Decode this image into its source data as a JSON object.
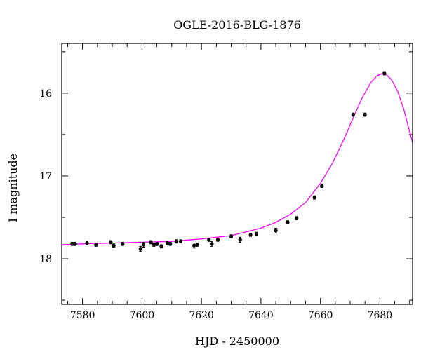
{
  "chart_data": {
    "type": "scatter",
    "title": "OGLE-2016-BLG-1876",
    "xlabel": "HJD - 2450000",
    "ylabel": "I magnitude",
    "xlim": [
      7573,
      7691
    ],
    "ylim": [
      18.55,
      15.4
    ],
    "y_inverted": true,
    "grid": false,
    "x_ticks": [
      7580,
      7600,
      7620,
      7640,
      7660,
      7680
    ],
    "y_ticks": [
      16,
      17,
      18
    ],
    "series": [
      {
        "kind": "points",
        "color": "#000000",
        "x": [
          7576.5,
          7577.5,
          7581.5,
          7584.5,
          7589.5,
          7590.5,
          7593.5,
          7599.5,
          7600.5,
          7603.0,
          7604.0,
          7605.0,
          7606.5,
          7608.5,
          7609.5,
          7611.5,
          7613.0,
          7617.5,
          7618.5,
          7622.5,
          7623.5,
          7625.5,
          7630.0,
          7633.0,
          7636.5,
          7638.5,
          7645.0,
          7649.0,
          7652.0,
          7658.0,
          7660.5,
          7671.0,
          7675.0,
          7681.5
        ],
        "y": [
          17.82,
          17.82,
          17.81,
          17.83,
          17.8,
          17.84,
          17.82,
          17.88,
          17.83,
          17.8,
          17.83,
          17.82,
          17.85,
          17.81,
          17.82,
          17.79,
          17.79,
          17.84,
          17.83,
          17.77,
          17.82,
          17.77,
          17.73,
          17.77,
          17.71,
          17.7,
          17.66,
          17.56,
          17.51,
          17.26,
          17.12,
          16.26,
          16.26,
          15.76
        ],
        "yerr": [
          0.02,
          0.02,
          0.02,
          0.02,
          0.02,
          0.02,
          0.02,
          0.03,
          0.03,
          0.02,
          0.02,
          0.02,
          0.02,
          0.02,
          0.02,
          0.02,
          0.02,
          0.03,
          0.02,
          0.02,
          0.03,
          0.02,
          0.02,
          0.03,
          0.02,
          0.02,
          0.03,
          0.02,
          0.02,
          0.02,
          0.02,
          0.02,
          0.02,
          0.02
        ]
      },
      {
        "kind": "line",
        "color": "#ff00ff",
        "x": [
          7573,
          7580,
          7590,
          7600,
          7610,
          7620,
          7630,
          7640,
          7645,
          7650,
          7655,
          7660,
          7664,
          7668,
          7671,
          7674,
          7677,
          7679,
          7681,
          7682,
          7684,
          7686,
          7688,
          7691
        ],
        "y": [
          17.83,
          17.82,
          17.81,
          17.8,
          17.79,
          17.76,
          17.72,
          17.63,
          17.56,
          17.46,
          17.32,
          17.09,
          16.85,
          16.55,
          16.3,
          16.06,
          15.87,
          15.79,
          15.76,
          15.77,
          15.84,
          15.98,
          16.19,
          16.6
        ]
      }
    ]
  }
}
